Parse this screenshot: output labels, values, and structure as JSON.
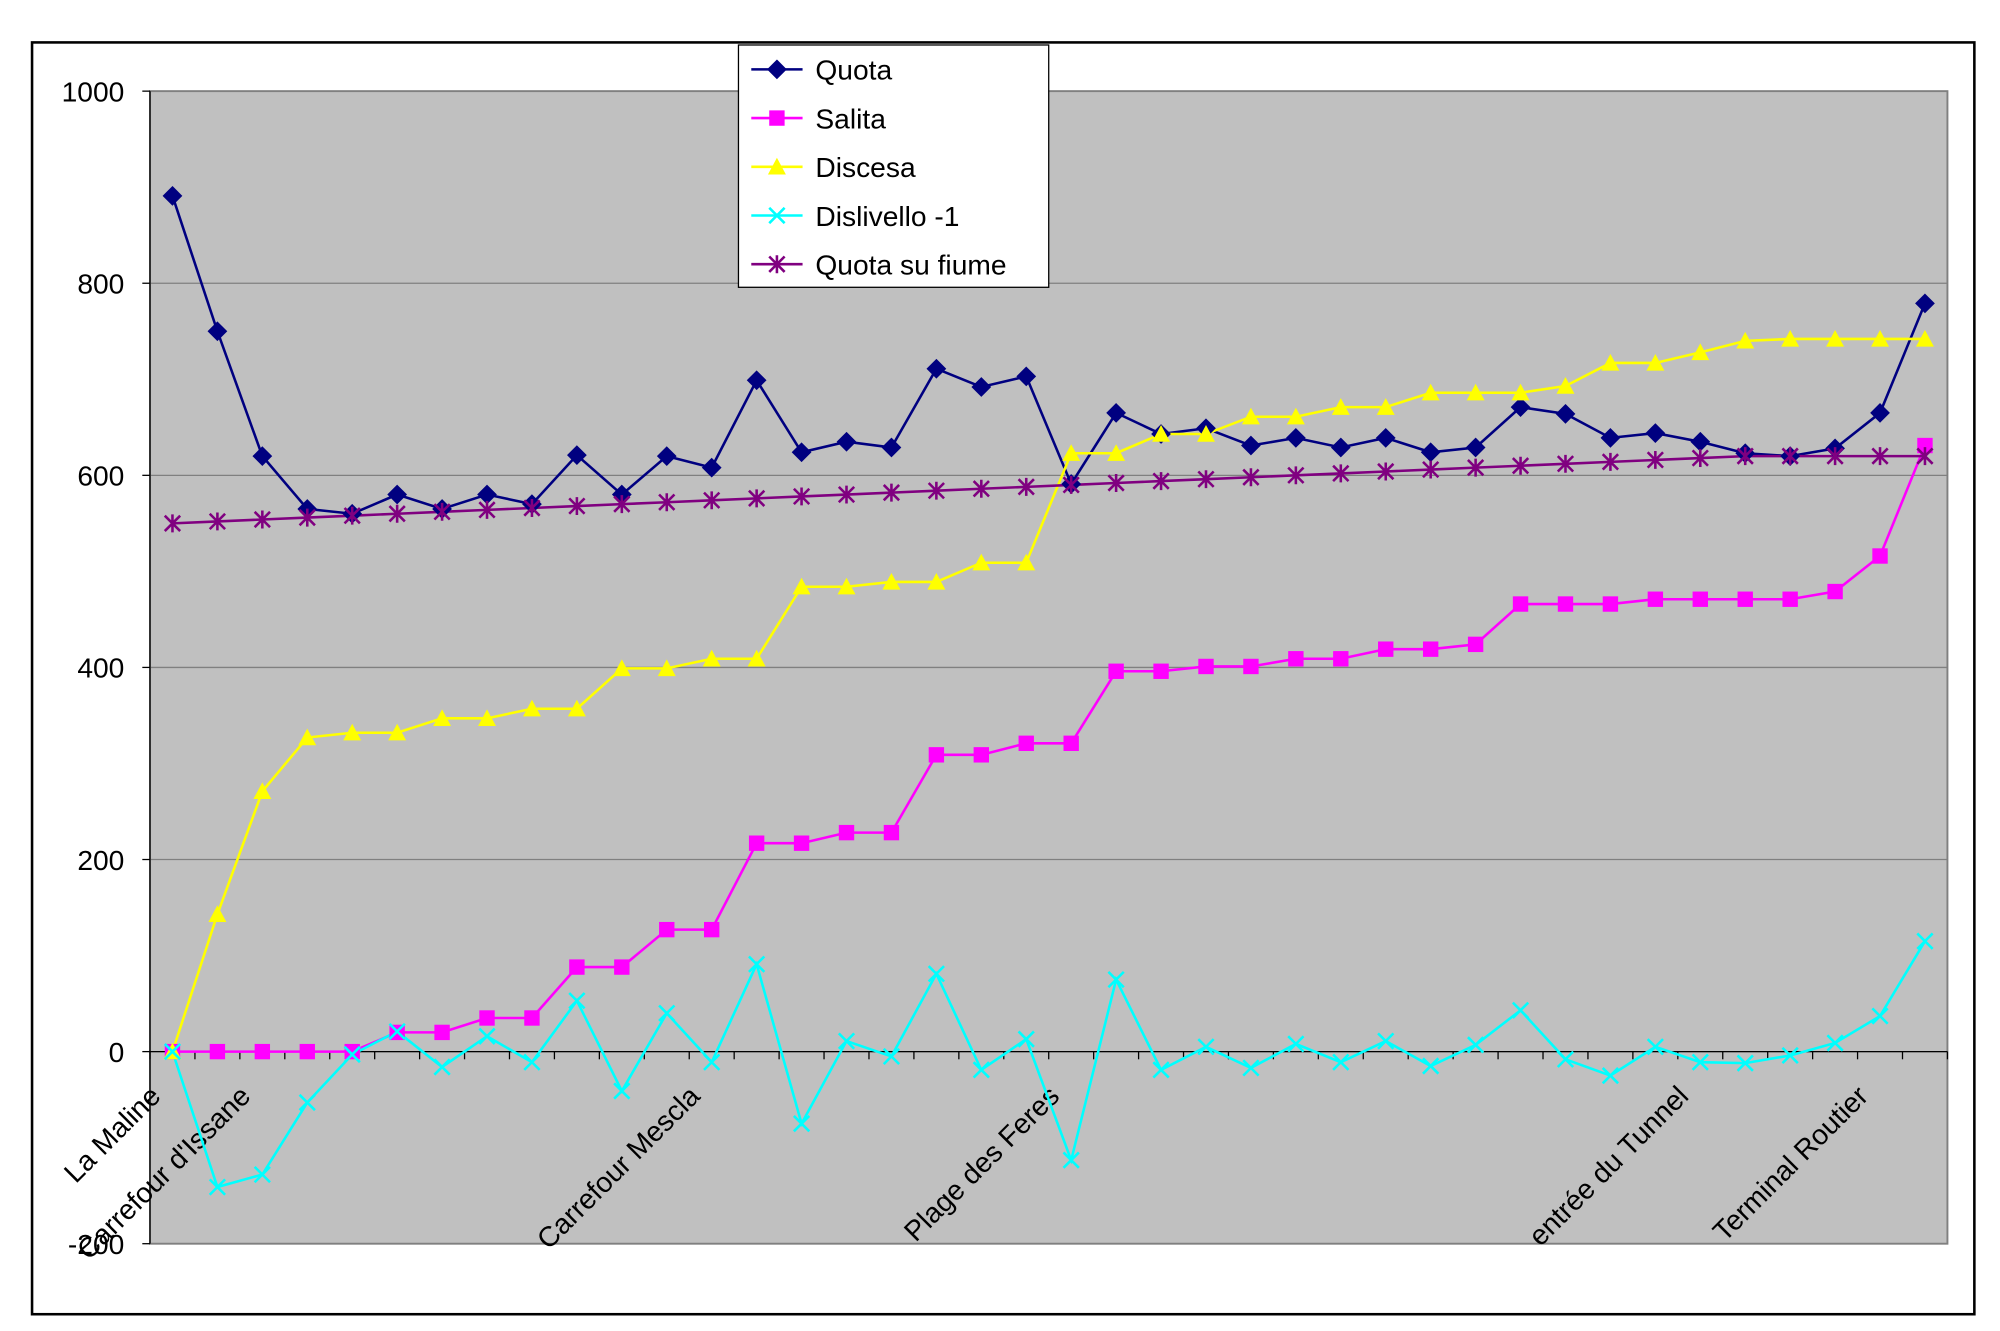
{
  "chart_data": {
    "type": "line",
    "categories": [
      "La Maline",
      null,
      "Carrefour d'Issane",
      null,
      null,
      null,
      null,
      null,
      null,
      null,
      null,
      null,
      "Carrefour Mescla",
      null,
      null,
      null,
      null,
      null,
      null,
      null,
      "Plage des Feres",
      null,
      null,
      null,
      null,
      null,
      null,
      null,
      null,
      null,
      null,
      null,
      null,
      null,
      "entrée du Tunnel",
      null,
      null,
      null,
      "Terminal Routier",
      null
    ],
    "series": [
      {
        "name": "Quota",
        "color": "#000080",
        "marker": "diamond",
        "values": [
          891,
          750,
          620,
          565,
          560,
          580,
          565,
          580,
          570,
          621,
          580,
          620,
          608,
          699,
          624,
          635,
          629,
          711,
          692,
          703,
          591,
          665,
          643,
          649,
          631,
          639,
          629,
          639,
          624,
          629,
          671,
          664,
          639,
          644,
          635,
          623,
          620,
          628,
          665,
          779
        ]
      },
      {
        "name": "Salita",
        "color": "#ff00ff",
        "marker": "square",
        "values": [
          0,
          0,
          0,
          0,
          0,
          20,
          20,
          35,
          35,
          88,
          88,
          127,
          127,
          217,
          217,
          228,
          228,
          309,
          309,
          321,
          321,
          396,
          396,
          401,
          401,
          409,
          409,
          419,
          419,
          424,
          466,
          466,
          466,
          471,
          471,
          471,
          471,
          479,
          516,
          631
        ]
      },
      {
        "name": "Discesa",
        "color": "#ffff00",
        "marker": "triangle",
        "values": [
          0,
          143,
          271,
          327,
          332,
          332,
          347,
          347,
          357,
          357,
          399,
          399,
          409,
          409,
          484,
          484,
          489,
          489,
          509,
          509,
          623,
          623,
          643,
          643,
          661,
          661,
          671,
          671,
          686,
          686,
          686,
          693,
          717,
          717,
          728,
          740,
          742,
          742,
          742,
          742
        ]
      },
      {
        "name": "Dislivello -1",
        "color": "#00ffff",
        "marker": "x",
        "values": [
          0,
          -141,
          -128,
          -53,
          -3,
          21,
          -16,
          16,
          -11,
          53,
          -41,
          40,
          -11,
          91,
          -75,
          11,
          -5,
          81,
          -19,
          13,
          -113,
          75,
          -19,
          5,
          -17,
          8,
          -11,
          11,
          -15,
          7,
          43,
          -8,
          -25,
          5,
          -11,
          -12,
          -4,
          9,
          37,
          115
        ]
      },
      {
        "name": "Quota su fiume",
        "color": "#800080",
        "marker": "star",
        "values": [
          550,
          552,
          554,
          556,
          558,
          560,
          562,
          564,
          566,
          568,
          570,
          572,
          574,
          576,
          578,
          580,
          582,
          584,
          586,
          588,
          590,
          592,
          594,
          596,
          598,
          600,
          602,
          604,
          606,
          608,
          610,
          612,
          614,
          616,
          618,
          620,
          620,
          620,
          620,
          620
        ]
      }
    ],
    "ylim": [
      -200,
      1000
    ],
    "yticks": [
      -200,
      0,
      200,
      400,
      600,
      800,
      1000
    ],
    "grid": true
  }
}
